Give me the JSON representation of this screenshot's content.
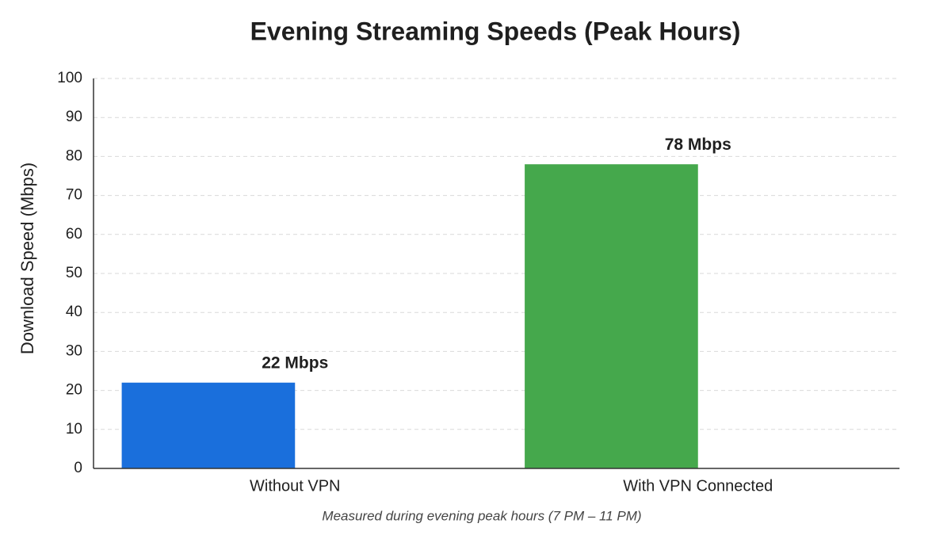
{
  "chart_data": {
    "type": "bar",
    "title": "Evening Streaming Speeds (Peak Hours)",
    "y_label": "Download Speed (Mbps)",
    "caption": "Measured during evening peak hours (7 PM – 11 PM)",
    "categories": [
      "Without VPN",
      "With VPN Connected"
    ],
    "values": [
      22,
      78
    ],
    "value_labels": [
      "22 Mbps",
      "78 Mbps"
    ],
    "colors": [
      "#1a6fdc",
      "#45a84c"
    ],
    "ylim": [
      0,
      100
    ],
    "yticks": [
      0,
      10,
      20,
      30,
      40,
      50,
      60,
      70,
      80,
      90,
      100
    ],
    "grid": true
  }
}
